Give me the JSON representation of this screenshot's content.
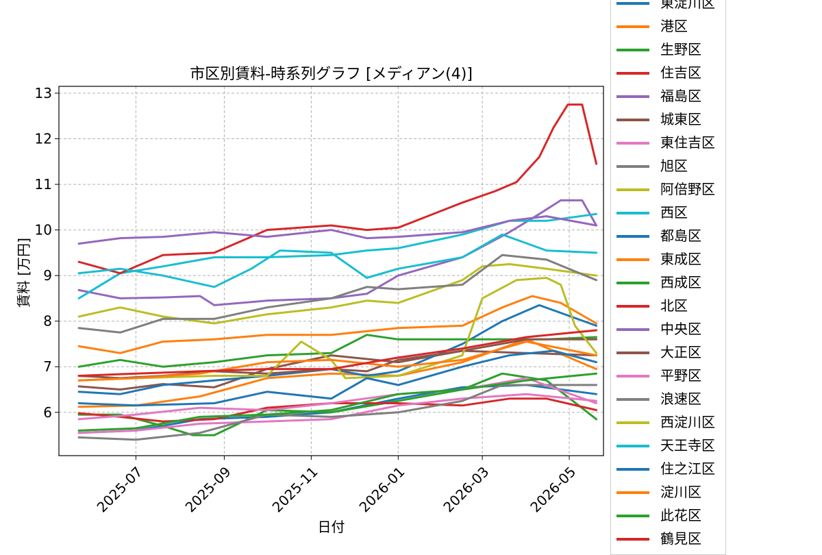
{
  "chart_data": {
    "type": "line",
    "title": "市区別賃料-時系列グラフ [メディアン(4)]",
    "xlabel": "日付",
    "ylabel": "賃料 [万円]",
    "x_range": [
      "2025-05-08",
      "2026-05-25"
    ],
    "ylim": [
      5.05,
      13.15
    ],
    "yticks": [
      6,
      7,
      8,
      9,
      10,
      11,
      12,
      13
    ],
    "xticks": [
      "2025-07",
      "2025-09",
      "2025-11",
      "2026-01",
      "2026-03",
      "2026-05"
    ],
    "grid": true,
    "legend_position": "right-outside",
    "series": [
      {
        "name": "東淀川区",
        "color": "#1f77b4",
        "x": [
          "2025-05-22",
          "2025-07-01",
          "2025-08-15",
          "2025-10-01",
          "2025-11-15",
          "2026-01-01",
          "2026-02-15",
          "2026-04-01",
          "2026-05-20"
        ],
        "values": [
          5.55,
          5.6,
          5.85,
          5.9,
          6.0,
          6.3,
          6.55,
          6.6,
          6.4
        ]
      },
      {
        "name": "港区",
        "color": "#ff7f0e",
        "x": [
          "2025-05-22",
          "2025-07-01",
          "2025-08-15",
          "2025-10-01",
          "2025-11-15",
          "2026-01-01",
          "2026-02-15",
          "2026-04-01",
          "2026-05-20"
        ],
        "values": [
          6.12,
          6.15,
          6.35,
          6.75,
          6.85,
          6.8,
          7.1,
          7.6,
          6.95
        ]
      },
      {
        "name": "生野区",
        "color": "#2ca02c",
        "x": [
          "2025-05-22",
          "2025-06-20",
          "2025-07-20",
          "2025-08-10",
          "2025-08-25",
          "2025-10-01",
          "2025-11-15",
          "2026-01-01",
          "2026-02-15",
          "2026-03-15",
          "2026-04-15",
          "2026-05-20"
        ],
        "values": [
          5.95,
          5.95,
          5.7,
          5.5,
          5.5,
          6.05,
          6.0,
          6.25,
          6.5,
          6.85,
          6.7,
          5.85
        ]
      },
      {
        "name": "住吉区",
        "color": "#d62728",
        "x": [
          "2025-05-22",
          "2025-06-20",
          "2025-07-20",
          "2025-08-25",
          "2025-10-01",
          "2025-11-15",
          "2026-01-01",
          "2026-02-15",
          "2026-03-20",
          "2026-04-15",
          "2026-05-20"
        ],
        "values": [
          5.98,
          5.9,
          5.8,
          5.85,
          6.1,
          6.2,
          6.2,
          6.15,
          6.3,
          6.3,
          6.05
        ]
      },
      {
        "name": "福島区",
        "color": "#9467bd",
        "x": [
          "2025-05-22",
          "2025-06-20",
          "2025-07-20",
          "2025-08-15",
          "2025-08-25",
          "2025-10-01",
          "2025-11-15",
          "2025-12-10",
          "2026-01-01",
          "2026-02-15",
          "2026-03-20",
          "2026-04-10",
          "2026-04-25",
          "2026-05-10",
          "2026-05-20"
        ],
        "values": [
          8.68,
          8.5,
          8.52,
          8.55,
          8.35,
          8.45,
          8.5,
          8.6,
          9.0,
          9.4,
          9.95,
          10.35,
          10.65,
          10.65,
          10.1
        ]
      },
      {
        "name": "城東区",
        "color": "#8c564b",
        "x": [
          "2025-05-22",
          "2025-06-20",
          "2025-07-20",
          "2025-08-25",
          "2025-10-01",
          "2025-11-15",
          "2026-01-01",
          "2026-02-15",
          "2026-04-01",
          "2026-05-20"
        ],
        "values": [
          6.57,
          6.5,
          6.62,
          6.55,
          6.95,
          7.25,
          7.1,
          7.35,
          7.3,
          7.25
        ]
      },
      {
        "name": "東住吉区",
        "color": "#e377c2",
        "x": [
          "2025-05-22",
          "2025-07-01",
          "2025-08-15",
          "2025-10-01",
          "2025-11-15",
          "2026-01-01",
          "2026-02-15",
          "2026-04-01",
          "2026-05-20"
        ],
        "values": [
          5.55,
          5.6,
          5.75,
          5.8,
          5.85,
          6.15,
          6.3,
          6.4,
          6.25
        ]
      },
      {
        "name": "旭区",
        "color": "#7f7f7f",
        "x": [
          "2025-05-22",
          "2025-07-01",
          "2025-08-15",
          "2025-10-01",
          "2025-11-15",
          "2026-01-01",
          "2026-02-15",
          "2026-03-15",
          "2026-04-15",
          "2026-05-20"
        ],
        "values": [
          5.45,
          5.4,
          5.55,
          5.95,
          5.9,
          6.0,
          6.25,
          6.6,
          6.6,
          6.6
        ]
      },
      {
        "name": "阿倍野区",
        "color": "#bcbd22",
        "x": [
          "2025-05-22",
          "2025-06-20",
          "2025-07-20",
          "2025-08-25",
          "2025-10-01",
          "2025-11-15",
          "2025-12-10",
          "2026-01-01",
          "2026-02-15",
          "2026-03-01",
          "2026-03-20",
          "2026-04-15",
          "2026-05-20"
        ],
        "values": [
          8.1,
          8.3,
          8.1,
          7.95,
          8.15,
          8.3,
          8.45,
          8.4,
          8.9,
          9.2,
          9.25,
          9.15,
          9.0
        ]
      },
      {
        "name": "西区",
        "color": "#17becf",
        "x": [
          "2025-05-22",
          "2025-06-20",
          "2025-07-20",
          "2025-08-25",
          "2025-10-01",
          "2025-11-15",
          "2025-12-10",
          "2026-01-01",
          "2026-02-15",
          "2026-03-20",
          "2026-04-15",
          "2026-05-20"
        ],
        "values": [
          8.5,
          9.05,
          9.2,
          9.4,
          9.4,
          9.45,
          9.55,
          9.6,
          9.9,
          10.2,
          10.2,
          10.35
        ]
      },
      {
        "name": "都島区",
        "color": "#1f77b4",
        "x": [
          "2025-05-22",
          "2025-06-20",
          "2025-07-20",
          "2025-08-25",
          "2025-10-01",
          "2025-11-15",
          "2025-12-10",
          "2026-01-01",
          "2026-02-15",
          "2026-03-15",
          "2026-04-10",
          "2026-05-20"
        ],
        "values": [
          6.45,
          6.4,
          6.6,
          6.7,
          6.8,
          6.95,
          6.8,
          6.9,
          7.5,
          8.0,
          8.35,
          7.9
        ]
      },
      {
        "name": "東成区",
        "color": "#ff7f0e",
        "x": [
          "2025-05-22",
          "2025-06-20",
          "2025-07-20",
          "2025-08-25",
          "2025-10-01",
          "2025-11-15",
          "2026-01-01",
          "2026-02-15",
          "2026-03-15",
          "2026-04-05",
          "2026-04-25",
          "2026-05-20"
        ],
        "values": [
          7.45,
          7.3,
          7.55,
          7.6,
          7.7,
          7.7,
          7.85,
          7.9,
          8.3,
          8.55,
          8.4,
          7.95
        ]
      },
      {
        "name": "西成区",
        "color": "#2ca02c",
        "x": [
          "2025-05-22",
          "2025-06-20",
          "2025-07-20",
          "2025-08-25",
          "2025-10-01",
          "2025-11-15",
          "2025-12-10",
          "2026-01-01",
          "2026-02-15",
          "2026-04-15",
          "2026-05-20"
        ],
        "values": [
          7.0,
          7.15,
          7.0,
          7.1,
          7.25,
          7.3,
          7.7,
          7.6,
          7.6,
          7.6,
          7.65
        ]
      },
      {
        "name": "北区",
        "color": "#d62728",
        "x": [
          "2025-05-22",
          "2025-06-20",
          "2025-07-20",
          "2025-08-25",
          "2025-10-01",
          "2025-11-15",
          "2025-12-10",
          "2026-01-01",
          "2026-02-15",
          "2026-03-10",
          "2026-03-25",
          "2026-04-10",
          "2026-04-20",
          "2026-04-30",
          "2026-05-10",
          "2026-05-20"
        ],
        "values": [
          9.3,
          9.05,
          9.45,
          9.5,
          10.0,
          10.1,
          10.0,
          10.05,
          10.6,
          10.85,
          11.05,
          11.6,
          12.25,
          12.75,
          12.75,
          11.45
        ]
      },
      {
        "name": "中央区",
        "color": "#9467bd",
        "x": [
          "2025-05-22",
          "2025-06-20",
          "2025-07-20",
          "2025-08-25",
          "2025-10-01",
          "2025-11-15",
          "2025-12-10",
          "2026-01-01",
          "2026-02-15",
          "2026-03-20",
          "2026-04-15",
          "2026-05-20"
        ],
        "values": [
          9.7,
          9.82,
          9.85,
          9.95,
          9.85,
          10.0,
          9.82,
          9.85,
          9.95,
          10.2,
          10.3,
          10.1
        ]
      },
      {
        "name": "大正区",
        "color": "#8c564b",
        "x": [
          "2025-05-22",
          "2025-06-20",
          "2025-07-20",
          "2025-08-25",
          "2025-10-01",
          "2025-11-15",
          "2025-12-10",
          "2026-01-01",
          "2026-02-15",
          "2026-04-01",
          "2026-05-20"
        ],
        "values": [
          6.8,
          6.75,
          6.8,
          6.9,
          6.85,
          6.95,
          6.9,
          7.15,
          7.35,
          7.6,
          7.6
        ]
      },
      {
        "name": "平野区",
        "color": "#e377c2",
        "x": [
          "2025-05-22",
          "2025-07-01",
          "2025-08-15",
          "2025-10-01",
          "2025-11-15",
          "2026-01-01",
          "2026-02-15",
          "2026-04-01",
          "2026-05-20"
        ],
        "values": [
          5.85,
          5.95,
          6.1,
          6.05,
          6.2,
          6.4,
          6.5,
          6.75,
          6.2
        ]
      },
      {
        "name": "浪速区",
        "color": "#7f7f7f",
        "x": [
          "2025-05-22",
          "2025-06-20",
          "2025-07-20",
          "2025-08-25",
          "2025-10-01",
          "2025-11-15",
          "2025-12-10",
          "2026-01-01",
          "2026-02-15",
          "2026-03-15",
          "2026-04-15",
          "2026-05-20"
        ],
        "values": [
          7.85,
          7.75,
          8.05,
          8.05,
          8.3,
          8.5,
          8.75,
          8.7,
          8.8,
          9.45,
          9.35,
          8.9
        ]
      },
      {
        "name": "西淀川区",
        "color": "#bcbd22",
        "x": [
          "2025-05-22",
          "2025-07-01",
          "2025-08-25",
          "2025-10-01",
          "2025-10-25",
          "2025-11-15",
          "2025-11-25",
          "2026-01-01",
          "2026-02-15",
          "2026-03-01",
          "2026-03-25",
          "2026-04-15",
          "2026-04-25",
          "2026-05-05",
          "2026-05-20"
        ],
        "values": [
          6.7,
          6.75,
          6.8,
          6.8,
          7.55,
          7.15,
          6.75,
          6.8,
          7.25,
          8.5,
          8.9,
          8.95,
          8.8,
          7.9,
          7.3
        ]
      },
      {
        "name": "天王寺区",
        "color": "#17becf",
        "x": [
          "2025-05-22",
          "2025-06-20",
          "2025-07-20",
          "2025-08-25",
          "2025-09-20",
          "2025-10-10",
          "2025-11-15",
          "2025-12-10",
          "2026-01-01",
          "2026-02-15",
          "2026-03-15",
          "2026-04-15",
          "2026-05-20"
        ],
        "values": [
          9.05,
          9.15,
          9.0,
          8.75,
          9.15,
          9.55,
          9.5,
          8.95,
          9.15,
          9.4,
          9.9,
          9.55,
          9.5
        ]
      },
      {
        "name": "住之江区",
        "color": "#1f77b4",
        "x": [
          "2025-05-22",
          "2025-07-01",
          "2025-08-25",
          "2025-10-01",
          "2025-11-15",
          "2025-12-10",
          "2026-01-01",
          "2026-02-15",
          "2026-03-20",
          "2026-04-20",
          "2026-05-20"
        ],
        "values": [
          6.2,
          6.15,
          6.2,
          6.45,
          6.3,
          6.75,
          6.6,
          7.0,
          7.25,
          7.35,
          7.1
        ]
      },
      {
        "name": "淀川区",
        "color": "#ff7f0e",
        "x": [
          "2025-05-22",
          "2025-07-01",
          "2025-08-15",
          "2025-10-01",
          "2025-11-15",
          "2026-01-01",
          "2026-02-15",
          "2026-04-01",
          "2026-05-20"
        ],
        "values": [
          6.7,
          6.75,
          6.85,
          7.1,
          7.15,
          7.0,
          7.15,
          7.55,
          7.25
        ]
      },
      {
        "name": "此花区",
        "color": "#2ca02c",
        "x": [
          "2025-05-22",
          "2025-07-01",
          "2025-08-15",
          "2025-10-01",
          "2025-11-15",
          "2026-01-01",
          "2026-02-15",
          "2026-04-01",
          "2026-05-20"
        ],
        "values": [
          5.6,
          5.65,
          5.9,
          5.95,
          6.05,
          6.4,
          6.5,
          6.7,
          6.85
        ]
      },
      {
        "name": "鶴見区",
        "color": "#d62728",
        "x": [
          "2025-05-22",
          "2025-07-01",
          "2025-08-15",
          "2025-10-01",
          "2025-11-15",
          "2026-01-01",
          "2026-02-15",
          "2026-04-01",
          "2026-05-20"
        ],
        "values": [
          6.8,
          6.85,
          6.9,
          6.95,
          6.95,
          7.2,
          7.4,
          7.65,
          7.8
        ]
      }
    ]
  }
}
